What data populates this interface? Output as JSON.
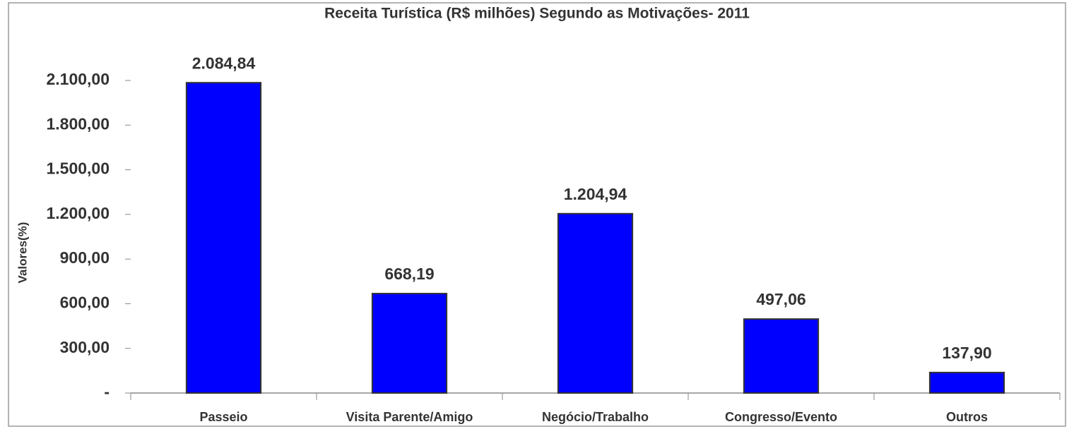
{
  "chart_data": {
    "type": "bar",
    "title": "Receita Turística (R$ milhões) Segundo as Motivações- 2011",
    "y_label": "Valores(%)",
    "categories": [
      "Passeio",
      "Visita Parente/Amigo",
      "Negócio/Trabalho",
      "Congresso/Evento",
      "Outros"
    ],
    "values": [
      2084.84,
      668.19,
      1204.94,
      497.06,
      137.9
    ],
    "value_labels": [
      "2.084,84",
      "668,19",
      "1.204,94",
      "497,06",
      "137,90"
    ],
    "color": "#0000ff",
    "ylim": [
      0,
      2400
    ],
    "yticks": [
      {
        "value": 0,
        "label": "-"
      },
      {
        "value": 300,
        "label": "300,00"
      },
      {
        "value": 600,
        "label": "600,00"
      },
      {
        "value": 900,
        "label": "900,00"
      },
      {
        "value": 1200,
        "label": "1.200,00"
      },
      {
        "value": 1500,
        "label": "1.500,00"
      },
      {
        "value": 1800,
        "label": "1.800,00"
      },
      {
        "value": 2100,
        "label": "2.100,00"
      }
    ],
    "grid": false
  }
}
